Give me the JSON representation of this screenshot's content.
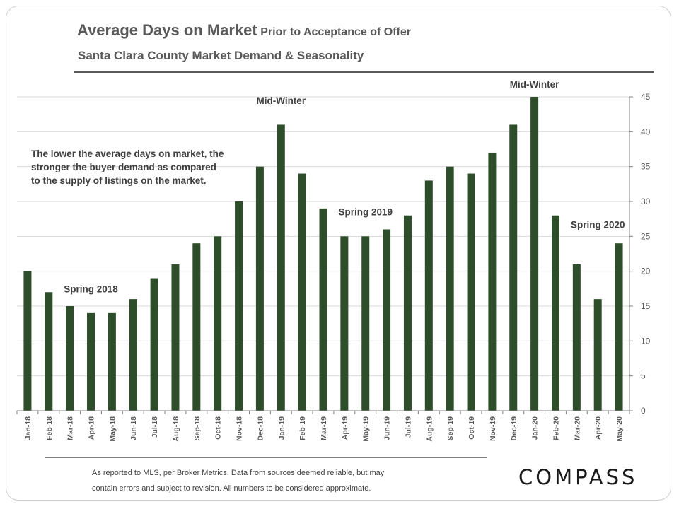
{
  "header": {
    "title_main": "Average Days on Market",
    "title_sub": "Prior to Acceptance of Offer",
    "subtitle": "Santa Clara County Market Demand & Seasonality"
  },
  "note_lines": [
    "The lower the average days on market, the",
    "stronger the buyer demand as compared",
    "to the supply of listings on the market."
  ],
  "footer_lines": [
    "As reported to MLS, per Broker Metrics. Data from sources deemed reliable, but may",
    "contain errors and subject to revision. All numbers to be considered approximate."
  ],
  "logo": "COMPASS",
  "chart_data": {
    "type": "bar",
    "categories": [
      "Jan-18",
      "Feb-18",
      "Mar-18",
      "Apr-18",
      "May-18",
      "Jun-18",
      "Jul-18",
      "Aug-18",
      "Sep-18",
      "Oct-18",
      "Nov-18",
      "Dec-18",
      "Jan-19",
      "Feb-19",
      "Mar-19",
      "Apr-19",
      "May-19",
      "Jun-19",
      "Jul-19",
      "Aug-19",
      "Sep-19",
      "Oct-19",
      "Nov-19",
      "Dec-19",
      "Jan-20",
      "Feb-20",
      "Mar-20",
      "Apr-20",
      "May-20"
    ],
    "values": [
      20,
      17,
      15,
      14,
      14,
      16,
      19,
      21,
      24,
      25,
      30,
      35,
      41,
      34,
      29,
      25,
      25,
      26,
      28,
      33,
      35,
      34,
      37,
      41,
      45,
      28,
      21,
      16,
      24
    ],
    "ylim": [
      0,
      45
    ],
    "yticks": [
      0,
      5,
      10,
      15,
      20,
      25,
      30,
      35,
      40,
      45
    ],
    "y_axis_side": "right",
    "grid": true,
    "bar_color": "#2e4d2a",
    "annotations": [
      {
        "text": "Spring 2018",
        "category": "Apr-18",
        "value": 17
      },
      {
        "text": "Mid-Winter",
        "category": "Jan-19",
        "value": 44
      },
      {
        "text": "Spring 2019",
        "category": "May-19",
        "value": 28
      },
      {
        "text": "Mid-Winter",
        "category": "Jan-20",
        "value": 46.3
      },
      {
        "text": "Spring 2020",
        "category": "Apr-20",
        "value": 26.2
      }
    ]
  }
}
